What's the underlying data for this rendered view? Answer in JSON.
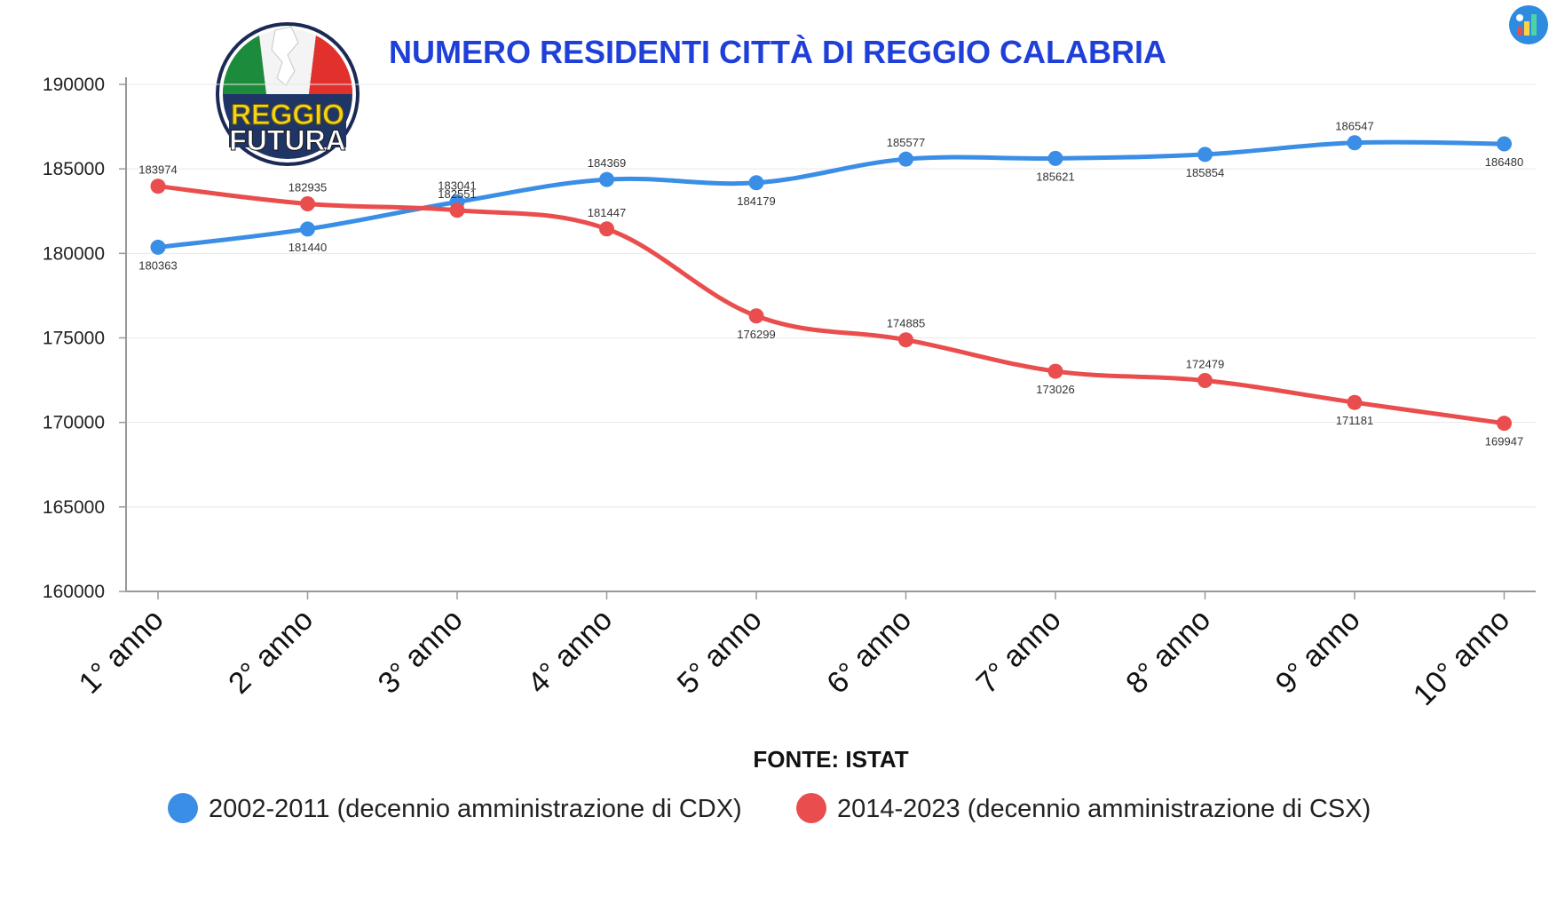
{
  "colors": {
    "series_cdx": "#3a8ee6",
    "series_csx": "#ea4d4d",
    "title": "#1f3fd9",
    "grid": "#e8e8e8",
    "axis": "#999999"
  },
  "logo": {
    "line1": "REGGIO",
    "line2": "FUTURA"
  },
  "chart_data": {
    "type": "line",
    "title": "NUMERO RESIDENTI CITTÀ DI REGGIO CALABRIA",
    "source": "FONTE: ISTAT",
    "xlabel": "",
    "ylabel": "",
    "ylim": [
      160000,
      190000
    ],
    "yticks": [
      160000,
      165000,
      170000,
      175000,
      180000,
      185000,
      190000
    ],
    "grid": true,
    "legend_position": "bottom",
    "categories": [
      "1° anno",
      "2° anno",
      "3° anno",
      "4° anno",
      "5° anno",
      "6° anno",
      "7° anno",
      "8° anno",
      "9° anno",
      "10° anno"
    ],
    "series": [
      {
        "name": "2002-2011 (decennio amministrazione di CDX)",
        "color": "#3a8ee6",
        "values": [
          180363,
          181440,
          183041,
          184369,
          184179,
          185577,
          185621,
          185854,
          186547,
          186480
        ],
        "label_pos": [
          "below",
          "below",
          "above",
          "above",
          "below",
          "above",
          "below",
          "below",
          "above",
          "below"
        ]
      },
      {
        "name": "2014-2023 (decennio amministrazione di CSX)",
        "color": "#ea4d4d",
        "values": [
          183974,
          182935,
          182551,
          181447,
          176299,
          174885,
          173026,
          172479,
          171181,
          169947
        ],
        "label_pos": [
          "above",
          "above",
          "above",
          "above",
          "below",
          "above",
          "below",
          "above",
          "below",
          "below"
        ]
      }
    ]
  }
}
